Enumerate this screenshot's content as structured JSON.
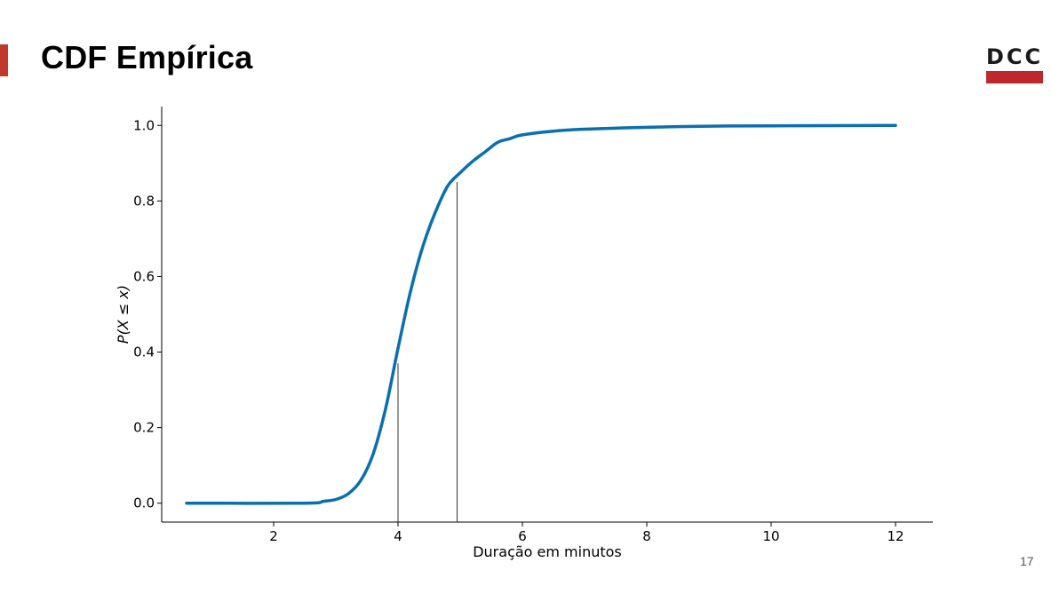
{
  "slide": {
    "title": "CDF Empírica",
    "logo_text": "DCC",
    "page_number": "17",
    "accent_color": "#c0392b",
    "logo_bar_color": "#c0272d"
  },
  "chart_data": {
    "type": "line",
    "xlabel": "Duração em minutos",
    "ylabel": "P(X ≤ x)",
    "xlim": [
      0.2,
      12.6
    ],
    "ylim": [
      -0.05,
      1.05
    ],
    "xticks": [
      2,
      4,
      6,
      8,
      10,
      12
    ],
    "yticks": [
      0.0,
      0.2,
      0.4,
      0.6,
      0.8,
      1.0
    ],
    "ytick_labels": [
      "0.0",
      "0.2",
      "0.4",
      "0.6",
      "0.8",
      "1.0"
    ],
    "grid": false,
    "line_color": "#0a6fb0",
    "series": [
      {
        "x": [
          0.6,
          2.5,
          2.8,
          3.0,
          3.2,
          3.4,
          3.6,
          3.8,
          4.0,
          4.2,
          4.4,
          4.6,
          4.8,
          5.0,
          5.2,
          5.4,
          5.6,
          5.8,
          6.0,
          6.5,
          7.0,
          8.0,
          9.0,
          10.0,
          12.0
        ],
        "y": [
          0.0,
          0.0,
          0.005,
          0.01,
          0.025,
          0.06,
          0.13,
          0.25,
          0.41,
          0.56,
          0.68,
          0.77,
          0.84,
          0.875,
          0.905,
          0.93,
          0.955,
          0.965,
          0.975,
          0.985,
          0.99,
          0.995,
          0.998,
          0.999,
          1.0
        ]
      }
    ],
    "vlines": [
      {
        "x": 4.0,
        "y": 0.37
      },
      {
        "x": 4.95,
        "y": 0.85
      }
    ]
  }
}
